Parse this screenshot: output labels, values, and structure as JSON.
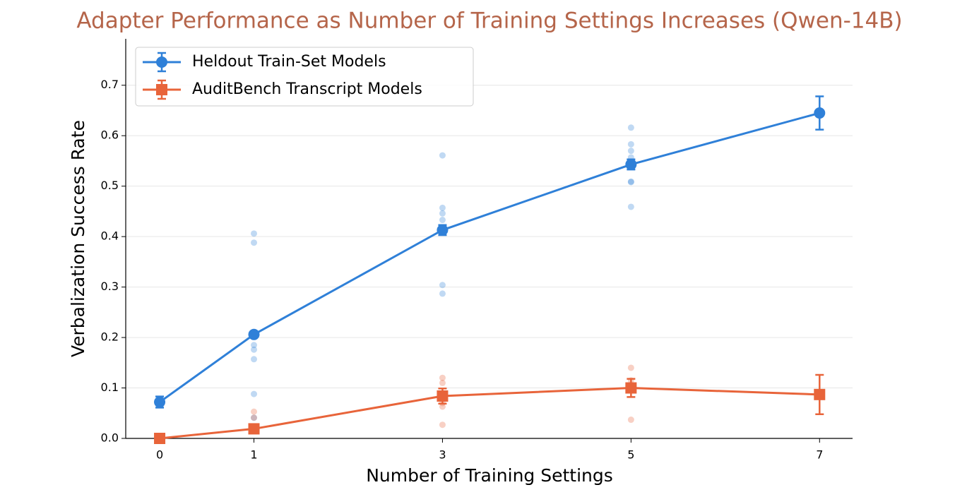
{
  "chart_data": {
    "type": "line",
    "title": "Adapter Performance as Number of Training Settings Increases (Qwen-14B)",
    "x_label": "Number of Training Settings",
    "y_label": "Verbalization Success Rate",
    "x": [
      0,
      1,
      3,
      5,
      7
    ],
    "series": [
      {
        "name": "Heldout Train-Set Models",
        "color": "#2f80d8",
        "marker": "circle",
        "values": [
          0.072,
          0.206,
          0.413,
          0.543,
          0.645
        ],
        "errors": [
          0.011,
          0.005,
          0.01,
          0.01,
          0.033
        ],
        "points": [
          [],
          [
            0.406,
            0.388,
            0.185,
            0.176,
            0.157,
            0.088,
            0.041
          ],
          [
            0.561,
            0.457,
            0.446,
            0.433,
            0.304,
            0.287
          ],
          [
            0.616,
            0.583,
            0.57,
            0.557,
            0.509,
            0.508,
            0.459
          ],
          []
        ]
      },
      {
        "name": "AuditBench Transcript Models",
        "color": "#e8643a",
        "marker": "square",
        "values": [
          0,
          0.019,
          0.084,
          0.1,
          0.087
        ],
        "errors": [
          0.002,
          0.008,
          0.015,
          0.018,
          0.039
        ],
        "points": [
          [],
          [
            0.053,
            0.041,
            0.02
          ],
          [
            0.12,
            0.11,
            0.07,
            0.063,
            0.027
          ],
          [
            0.14,
            0.115,
            0.1,
            0.037
          ],
          []
        ]
      }
    ],
    "xlim": [
      -0.36,
      7.35
    ],
    "ylim": [
      0,
      0.792
    ],
    "xticks": [
      0,
      1,
      3,
      5,
      7
    ],
    "yticks": [
      {
        "value": 0,
        "label": "0.0"
      },
      0.1,
      0.2,
      0.3,
      0.4,
      0.5,
      0.6,
      0.7
    ],
    "grid": true,
    "legend": "upper left"
  }
}
